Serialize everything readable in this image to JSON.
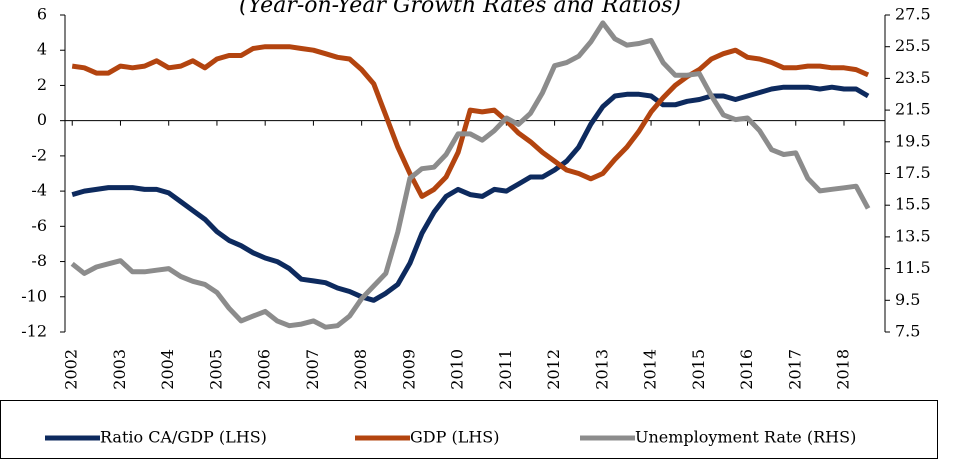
{
  "chart_data": {
    "type": "line",
    "title": "(Year-on-Year Growth Rates and Ratios)",
    "x": [
      2002,
      2002.25,
      2002.5,
      2002.75,
      2003,
      2003.25,
      2003.5,
      2003.75,
      2004,
      2004.25,
      2004.5,
      2004.75,
      2005,
      2005.25,
      2005.5,
      2005.75,
      2006,
      2006.25,
      2006.5,
      2006.75,
      2007,
      2007.25,
      2007.5,
      2007.75,
      2008,
      2008.25,
      2008.5,
      2008.75,
      2009,
      2009.25,
      2009.5,
      2009.75,
      2010,
      2010.25,
      2010.5,
      2010.75,
      2011,
      2011.25,
      2011.5,
      2011.75,
      2012,
      2012.25,
      2012.5,
      2012.75,
      2013,
      2013.25,
      2013.5,
      2013.75,
      2014,
      2014.25,
      2014.5,
      2014.75,
      2015,
      2015.25,
      2015.5,
      2015.75,
      2016,
      2016.25,
      2016.5,
      2016.75,
      2017,
      2017.25,
      2017.5,
      2017.75,
      2018,
      2018.25,
      2018.5
    ],
    "xlim": [
      2001.85,
      2018.85
    ],
    "xticks": [
      2002,
      2003,
      2004,
      2005,
      2006,
      2007,
      2008,
      2009,
      2010,
      2011,
      2012,
      2013,
      2014,
      2015,
      2016,
      2017,
      2018
    ],
    "ylim": [
      -12,
      6
    ],
    "yticks": [
      -12,
      -10,
      -8,
      -6,
      -4,
      -2,
      0,
      2,
      4,
      6
    ],
    "y2lim": [
      7.5,
      27.5
    ],
    "y2ticks": [
      7.5,
      9.5,
      11.5,
      13.5,
      15.5,
      17.5,
      19.5,
      21.5,
      23.5,
      25.5,
      27.5
    ],
    "grid": false,
    "legend": "bottom",
    "series": [
      {
        "name": "Ratio CA/GDP (LHS)",
        "color": "#0d2a5e",
        "values": [
          -4.2,
          -4.0,
          -3.9,
          -3.8,
          -3.8,
          -3.8,
          -3.9,
          -3.9,
          -4.1,
          -4.6,
          -5.1,
          -5.6,
          -6.3,
          -6.8,
          -7.1,
          -7.5,
          -7.8,
          -8.0,
          -8.4,
          -9.0,
          -9.1,
          -9.2,
          -9.5,
          -9.7,
          -10.0,
          -10.2,
          -9.8,
          -9.3,
          -8.1,
          -6.4,
          -5.2,
          -4.3,
          -3.9,
          -4.2,
          -4.3,
          -3.9,
          -4.0,
          -3.6,
          -3.2,
          -3.2,
          -2.8,
          -2.3,
          -1.5,
          -0.2,
          0.8,
          1.4,
          1.5,
          1.5,
          1.4,
          0.9,
          0.9,
          1.1,
          1.2,
          1.4,
          1.4,
          1.2,
          1.4,
          1.6,
          1.8,
          1.9,
          1.9,
          1.9,
          1.8,
          1.9,
          1.8,
          1.8,
          1.4
        ]
      },
      {
        "name": "GDP (LHS)",
        "color": "#b3440f",
        "values": [
          3.1,
          3.0,
          2.7,
          2.7,
          3.1,
          3.0,
          3.1,
          3.4,
          3.0,
          3.1,
          3.4,
          3.0,
          3.5,
          3.7,
          3.7,
          4.1,
          4.2,
          4.2,
          4.2,
          4.1,
          4.0,
          3.8,
          3.6,
          3.5,
          2.9,
          2.1,
          0.3,
          -1.5,
          -3.0,
          -4.3,
          -3.9,
          -3.2,
          -1.8,
          0.6,
          0.5,
          0.6,
          0.0,
          -0.7,
          -1.2,
          -1.8,
          -2.3,
          -2.8,
          -3.0,
          -3.3,
          -3.0,
          -2.2,
          -1.5,
          -0.6,
          0.5,
          1.3,
          2.0,
          2.5,
          2.9,
          3.5,
          3.8,
          4.0,
          3.6,
          3.5,
          3.3,
          3.0,
          3.0,
          3.1,
          3.1,
          3.0,
          3.0,
          2.9,
          2.6
        ]
      },
      {
        "name": "Unemployment Rate (RHS)",
        "color": "#8c8c8c",
        "axis": "y2",
        "values": [
          11.8,
          11.2,
          11.6,
          11.8,
          12.0,
          11.3,
          11.3,
          11.4,
          11.5,
          11.0,
          10.7,
          10.5,
          10.0,
          9.0,
          8.2,
          8.5,
          8.8,
          8.2,
          7.9,
          8.0,
          8.2,
          7.8,
          7.9,
          8.5,
          9.6,
          10.4,
          11.2,
          13.8,
          17.2,
          17.8,
          17.9,
          18.7,
          20.0,
          20.0,
          19.6,
          20.2,
          21.0,
          20.6,
          21.3,
          22.6,
          24.3,
          24.5,
          24.9,
          25.8,
          27.0,
          26.0,
          25.6,
          25.7,
          25.9,
          24.5,
          23.7,
          23.7,
          23.8,
          22.4,
          21.2,
          20.9,
          21.0,
          20.2,
          19.0,
          18.7,
          18.8,
          17.2,
          16.4,
          16.5,
          16.6,
          16.7,
          15.3
        ]
      }
    ]
  }
}
